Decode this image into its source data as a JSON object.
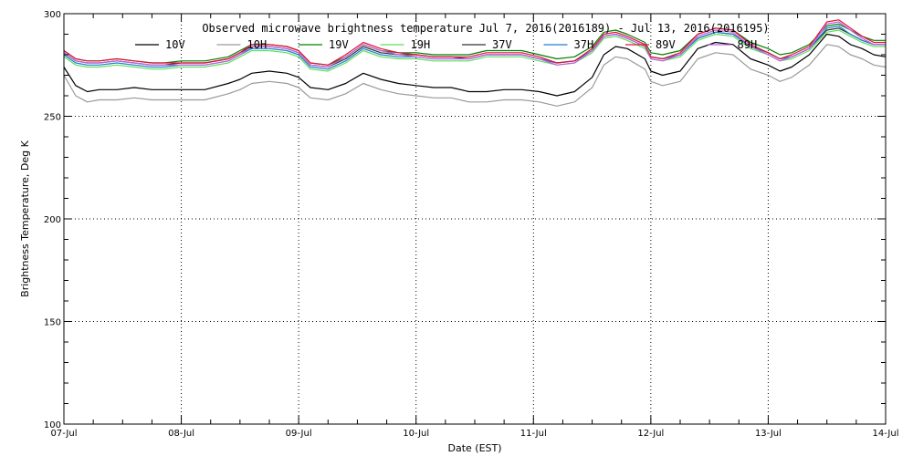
{
  "chart_data": {
    "type": "line",
    "title": "Observed microwave brightness temperature Jul  7, 2016(2016189) - Jul 13, 2016(2016195)",
    "xlabel": "Date (EST)",
    "ylabel": "Brightness Temperature, Deg K",
    "ylim": [
      100,
      300
    ],
    "yticks": [
      100,
      150,
      200,
      250,
      300
    ],
    "xlim": [
      0,
      7
    ],
    "xticks": [
      0,
      1,
      2,
      3,
      4,
      5,
      6,
      7
    ],
    "xtick_labels": [
      "07-Jul",
      "08-Jul",
      "09-Jul",
      "10-Jul",
      "11-Jul",
      "12-Jul",
      "13-Jul",
      "14-Jul"
    ],
    "grid": true,
    "legend_position": "top",
    "series": [
      {
        "name": "10V",
        "color": "#000000",
        "x": [
          0,
          0.1,
          0.2,
          0.3,
          0.45,
          0.6,
          0.75,
          0.85,
          1.0,
          1.2,
          1.4,
          1.5,
          1.6,
          1.75,
          1.9,
          2.0,
          2.1,
          2.25,
          2.4,
          2.55,
          2.7,
          2.85,
          3.0,
          3.15,
          3.3,
          3.45,
          3.6,
          3.75,
          3.9,
          4.05,
          4.2,
          4.35,
          4.5,
          4.6,
          4.7,
          4.8,
          4.95,
          5.0,
          5.1,
          5.25,
          5.4,
          5.55,
          5.7,
          5.85,
          6.0,
          6.1,
          6.2,
          6.35,
          6.5,
          6.6,
          6.7,
          6.8,
          6.9,
          7.0
        ],
        "values": [
          274,
          265,
          262,
          263,
          263,
          264,
          263,
          263,
          263,
          263,
          266,
          268,
          271,
          272,
          271,
          269,
          264,
          263,
          266,
          271,
          268,
          266,
          265,
          264,
          264,
          262,
          262,
          263,
          263,
          262,
          260,
          262,
          269,
          280,
          284,
          283,
          278,
          272,
          270,
          272,
          283,
          286,
          285,
          278,
          275,
          272,
          274,
          280,
          290,
          289,
          285,
          283,
          280,
          279
        ]
      },
      {
        "name": "10H",
        "color": "#9a9a9a",
        "x": [
          0,
          0.1,
          0.2,
          0.3,
          0.45,
          0.6,
          0.75,
          0.85,
          1.0,
          1.2,
          1.4,
          1.5,
          1.6,
          1.75,
          1.9,
          2.0,
          2.1,
          2.25,
          2.4,
          2.55,
          2.7,
          2.85,
          3.0,
          3.15,
          3.3,
          3.45,
          3.6,
          3.75,
          3.9,
          4.05,
          4.2,
          4.35,
          4.5,
          4.6,
          4.7,
          4.8,
          4.95,
          5.0,
          5.1,
          5.25,
          5.4,
          5.55,
          5.7,
          5.85,
          6.0,
          6.1,
          6.2,
          6.35,
          6.5,
          6.6,
          6.7,
          6.8,
          6.9,
          7.0
        ],
        "values": [
          270,
          260,
          257,
          258,
          258,
          259,
          258,
          258,
          258,
          258,
          261,
          263,
          266,
          267,
          266,
          264,
          259,
          258,
          261,
          266,
          263,
          261,
          260,
          259,
          259,
          257,
          257,
          258,
          258,
          257,
          255,
          257,
          264,
          275,
          279,
          278,
          273,
          267,
          265,
          267,
          278,
          281,
          280,
          273,
          270,
          267,
          269,
          275,
          285,
          284,
          280,
          278,
          275,
          274
        ]
      },
      {
        "name": "19V",
        "color": "#008000",
        "x": [
          0,
          0.1,
          0.2,
          0.3,
          0.45,
          0.6,
          0.75,
          0.85,
          1.0,
          1.2,
          1.4,
          1.5,
          1.6,
          1.75,
          1.9,
          2.0,
          2.1,
          2.25,
          2.4,
          2.55,
          2.7,
          2.85,
          3.0,
          3.15,
          3.3,
          3.45,
          3.6,
          3.75,
          3.9,
          4.05,
          4.2,
          4.35,
          4.5,
          4.6,
          4.7,
          4.8,
          4.95,
          5.0,
          5.1,
          5.25,
          5.4,
          5.55,
          5.7,
          5.85,
          6.0,
          6.1,
          6.2,
          6.35,
          6.5,
          6.6,
          6.7,
          6.8,
          6.9,
          7.0
        ],
        "values": [
          282,
          278,
          277,
          277,
          278,
          277,
          276,
          276,
          277,
          277,
          279,
          282,
          285,
          285,
          284,
          282,
          276,
          275,
          279,
          285,
          282,
          281,
          281,
          280,
          280,
          280,
          282,
          282,
          282,
          280,
          278,
          279,
          284,
          291,
          292,
          290,
          286,
          281,
          280,
          282,
          290,
          293,
          292,
          286,
          283,
          280,
          281,
          285,
          294,
          295,
          292,
          289,
          287,
          287
        ]
      },
      {
        "name": "19H",
        "color": "#5de05d",
        "x": [
          0,
          0.1,
          0.2,
          0.3,
          0.45,
          0.6,
          0.75,
          0.85,
          1.0,
          1.2,
          1.4,
          1.5,
          1.6,
          1.75,
          1.9,
          2.0,
          2.1,
          2.25,
          2.4,
          2.55,
          2.7,
          2.85,
          3.0,
          3.15,
          3.3,
          3.45,
          3.6,
          3.75,
          3.9,
          4.05,
          4.2,
          4.35,
          4.5,
          4.6,
          4.7,
          4.8,
          4.95,
          5.0,
          5.1,
          5.25,
          5.4,
          5.55,
          5.7,
          5.85,
          6.0,
          6.1,
          6.2,
          6.35,
          6.5,
          6.6,
          6.7,
          6.8,
          6.9,
          7.0
        ],
        "values": [
          279,
          275,
          274,
          274,
          275,
          274,
          273,
          273,
          274,
          274,
          276,
          279,
          282,
          282,
          281,
          279,
          273,
          272,
          276,
          282,
          279,
          278,
          278,
          277,
          277,
          277,
          279,
          279,
          279,
          277,
          275,
          276,
          281,
          288,
          289,
          287,
          283,
          278,
          277,
          279,
          287,
          290,
          289,
          283,
          280,
          277,
          278,
          282,
          291,
          292,
          289,
          286,
          284,
          284
        ]
      },
      {
        "name": "37V",
        "color": "#303030",
        "x": [
          0,
          0.1,
          0.2,
          0.3,
          0.45,
          0.6,
          0.75,
          0.85,
          1.0,
          1.2,
          1.4,
          1.5,
          1.6,
          1.75,
          1.9,
          2.0,
          2.1,
          2.25,
          2.4,
          2.55,
          2.7,
          2.85,
          3.0,
          3.15,
          3.3,
          3.45,
          3.6,
          3.75,
          3.9,
          4.05,
          4.2,
          4.35,
          4.5,
          4.6,
          4.7,
          4.8,
          4.95,
          5.0,
          5.1,
          5.25,
          5.4,
          5.55,
          5.7,
          5.85,
          6.0,
          6.1,
          6.2,
          6.35,
          6.5,
          6.6,
          6.7,
          6.8,
          6.9,
          7.0
        ],
        "values": [
          281,
          277,
          276,
          276,
          277,
          276,
          275,
          275,
          276,
          276,
          278,
          281,
          284,
          284,
          283,
          281,
          275,
          274,
          278,
          284,
          281,
          280,
          280,
          279,
          279,
          278,
          280,
          280,
          280,
          278,
          276,
          277,
          282,
          289,
          290,
          288,
          284,
          279,
          278,
          280,
          288,
          291,
          290,
          284,
          281,
          278,
          279,
          283,
          292,
          293,
          290,
          287,
          285,
          285
        ]
      },
      {
        "name": "37H",
        "color": "#1e7fd0",
        "x": [
          0,
          0.1,
          0.2,
          0.3,
          0.45,
          0.6,
          0.75,
          0.85,
          1.0,
          1.2,
          1.4,
          1.5,
          1.6,
          1.75,
          1.9,
          2.0,
          2.1,
          2.25,
          2.4,
          2.55,
          2.7,
          2.85,
          3.0,
          3.15,
          3.3,
          3.45,
          3.6,
          3.75,
          3.9,
          4.05,
          4.2,
          4.35,
          4.5,
          4.6,
          4.7,
          4.8,
          4.95,
          5.0,
          5.1,
          5.25,
          5.4,
          5.55,
          5.7,
          5.85,
          6.0,
          6.1,
          6.2,
          6.35,
          6.5,
          6.6,
          6.7,
          6.8,
          6.9,
          7.0
        ],
        "values": [
          280,
          276,
          275,
          275,
          276,
          275,
          274,
          274,
          275,
          275,
          277,
          280,
          283,
          283,
          282,
          280,
          274,
          273,
          277,
          283,
          280,
          279,
          279,
          278,
          278,
          278,
          280,
          280,
          280,
          278,
          276,
          277,
          282,
          289,
          290,
          288,
          284,
          279,
          278,
          280,
          288,
          291,
          290,
          284,
          281,
          278,
          279,
          283,
          293,
          294,
          290,
          287,
          285,
          285
        ]
      },
      {
        "name": "89V",
        "color": "#e8103a",
        "x": [
          0,
          0.1,
          0.2,
          0.3,
          0.45,
          0.6,
          0.75,
          0.85,
          1.0,
          1.2,
          1.4,
          1.5,
          1.6,
          1.75,
          1.9,
          2.0,
          2.1,
          2.25,
          2.4,
          2.55,
          2.7,
          2.85,
          3.0,
          3.15,
          3.3,
          3.45,
          3.6,
          3.75,
          3.9,
          4.05,
          4.2,
          4.35,
          4.5,
          4.6,
          4.7,
          4.8,
          4.95,
          5.0,
          5.1,
          5.25,
          5.4,
          5.55,
          5.7,
          5.85,
          6.0,
          6.1,
          6.2,
          6.35,
          6.5,
          6.6,
          6.7,
          6.8,
          6.9,
          7.0
        ],
        "values": [
          282,
          278,
          277,
          277,
          278,
          277,
          276,
          276,
          276,
          276,
          278,
          281,
          285,
          285,
          284,
          282,
          276,
          275,
          280,
          286,
          283,
          281,
          280,
          279,
          279,
          279,
          281,
          281,
          281,
          279,
          276,
          277,
          283,
          290,
          291,
          289,
          285,
          279,
          278,
          281,
          290,
          293,
          292,
          285,
          281,
          278,
          280,
          284,
          296,
          297,
          293,
          289,
          286,
          286
        ]
      },
      {
        "name": "89H",
        "color": "#c060e0",
        "x": [
          0,
          0.1,
          0.2,
          0.3,
          0.45,
          0.6,
          0.75,
          0.85,
          1.0,
          1.2,
          1.4,
          1.5,
          1.6,
          1.75,
          1.9,
          2.0,
          2.1,
          2.25,
          2.4,
          2.55,
          2.7,
          2.85,
          3.0,
          3.15,
          3.3,
          3.45,
          3.6,
          3.75,
          3.9,
          4.05,
          4.2,
          4.35,
          4.5,
          4.6,
          4.7,
          4.8,
          4.95,
          5.0,
          5.1,
          5.25,
          5.4,
          5.55,
          5.7,
          5.85,
          6.0,
          6.1,
          6.2,
          6.35,
          6.5,
          6.6,
          6.7,
          6.8,
          6.9,
          7.0
        ],
        "values": [
          281,
          277,
          276,
          276,
          277,
          276,
          275,
          275,
          275,
          275,
          277,
          280,
          284,
          284,
          283,
          281,
          275,
          274,
          279,
          285,
          282,
          280,
          279,
          278,
          278,
          278,
          280,
          280,
          280,
          278,
          275,
          276,
          282,
          289,
          290,
          288,
          284,
          278,
          277,
          280,
          289,
          292,
          291,
          284,
          280,
          277,
          279,
          283,
          295,
          296,
          292,
          288,
          285,
          285
        ]
      }
    ]
  }
}
